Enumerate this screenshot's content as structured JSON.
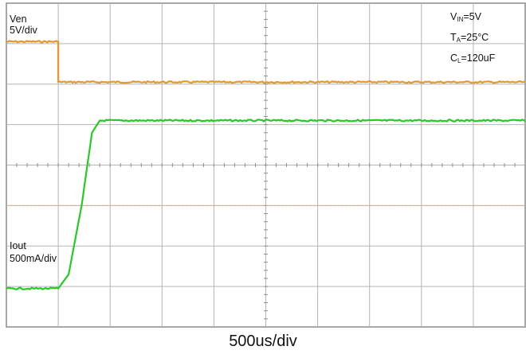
{
  "chart_data": {
    "type": "line",
    "xlabel": "500us/div",
    "x_unit": "div",
    "xlim": [
      0,
      10
    ],
    "ylim": [
      0,
      8
    ],
    "grid": true,
    "series": [
      {
        "name": "Ven",
        "scale": "5V/div",
        "color": "#e8962a",
        "points": [
          [
            0,
            7.05
          ],
          [
            1.0,
            7.05
          ],
          [
            1.0,
            6.05
          ],
          [
            10,
            6.05
          ]
        ]
      },
      {
        "name": "Iout",
        "scale": "500mA/div",
        "color": "#22cc22",
        "points": [
          [
            0,
            0.95
          ],
          [
            1.0,
            0.95
          ],
          [
            1.2,
            1.3
          ],
          [
            1.45,
            3.0
          ],
          [
            1.65,
            4.8
          ],
          [
            1.8,
            5.1
          ],
          [
            10,
            5.1
          ]
        ]
      }
    ],
    "reference_level": 3.0,
    "conditions": {
      "vin": {
        "prefix": "V",
        "sub": "IN",
        "value": "=5V"
      },
      "ta": {
        "prefix": "T",
        "sub": "A",
        "value": "=25°C"
      },
      "cl": {
        "prefix": "C",
        "sub": "L",
        "value": "=120uF"
      }
    }
  }
}
